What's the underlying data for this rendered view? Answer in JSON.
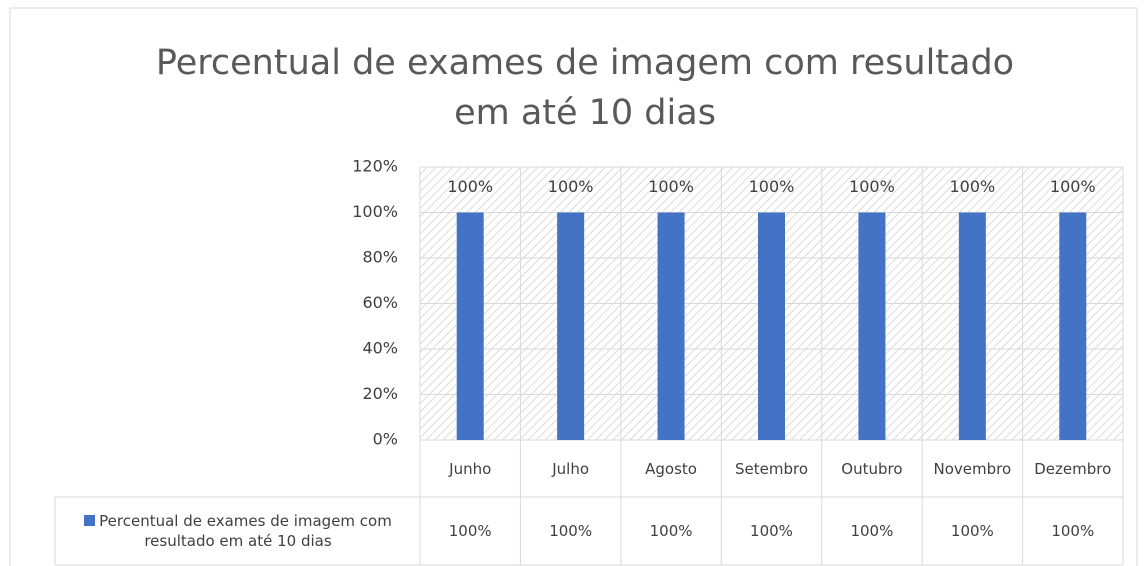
{
  "chart_data": {
    "type": "bar",
    "title": "Percentual de exames de imagem com resultado em até 10 dias",
    "categories": [
      "Junho",
      "Julho",
      "Agosto",
      "Setembro",
      "Outubro",
      "Novembro",
      "Dezembro"
    ],
    "series": [
      {
        "name": "Percentual de exames de imagem com resultado em até 10 dias",
        "color": "#4472c4",
        "values": [
          100,
          100,
          100,
          100,
          100,
          100,
          100
        ],
        "value_labels": [
          "100%",
          "100%",
          "100%",
          "100%",
          "100%",
          "100%",
          "100%"
        ]
      }
    ],
    "ylim": [
      0,
      120
    ],
    "yticks": [
      {
        "value": 0,
        "label": "0%"
      },
      {
        "value": 20,
        "label": "20%"
      },
      {
        "value": 40,
        "label": "40%"
      },
      {
        "value": 60,
        "label": "60%"
      },
      {
        "value": 80,
        "label": "80%"
      },
      {
        "value": 100,
        "label": "100%"
      },
      {
        "value": 120,
        "label": "120%"
      }
    ],
    "grid": true,
    "data_table": true
  }
}
